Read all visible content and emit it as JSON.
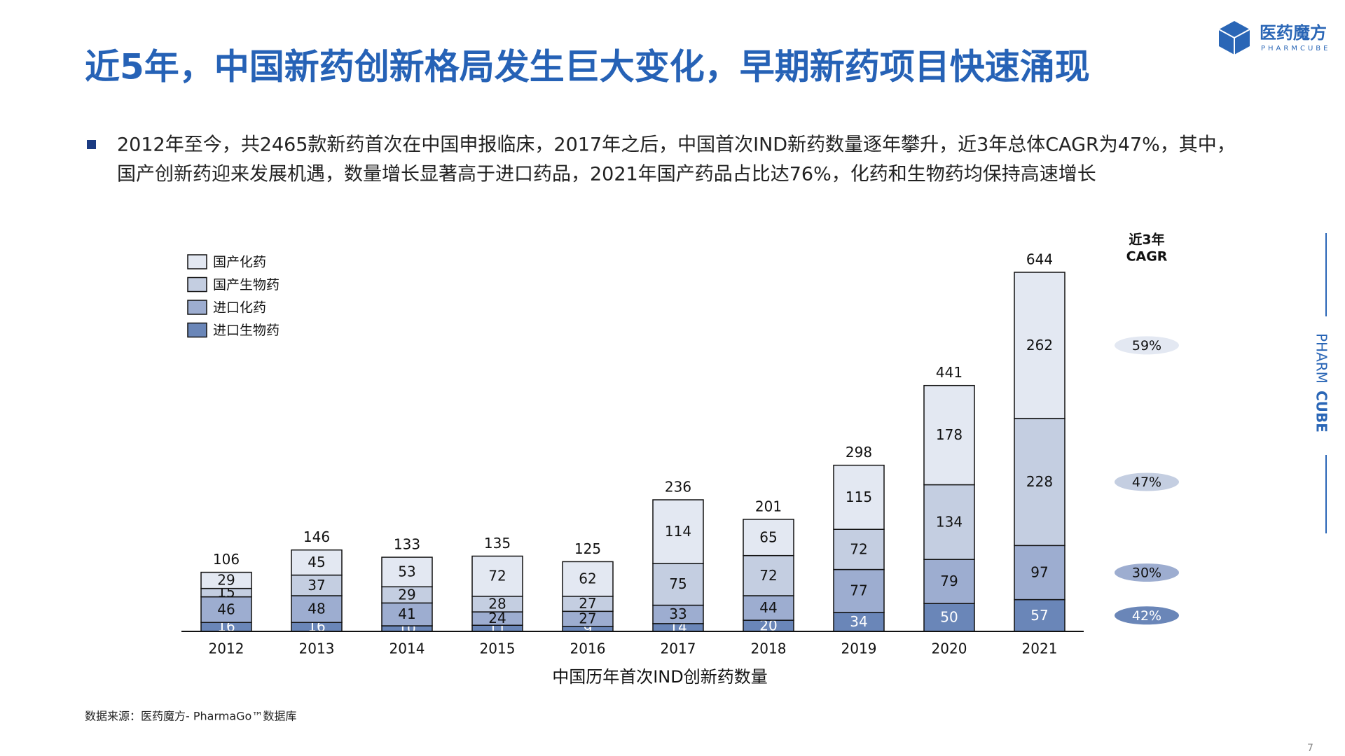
{
  "header": {
    "title": "近5年，中国新药创新格局发生巨大变化，早期新药项目快速涌现",
    "logo_cn": "医药魔方",
    "logo_en": "PHARMCUBE",
    "side_label_a": "PHARM",
    "side_label_b": "CUBE"
  },
  "bullet": [
    "2012年至今，共2465款新药首次在中国申报临床，2017年之后，中国首次IND新药数量逐年攀升，近3年总体CAGR为47%，其中，",
    "国产创新药迎来发展机遇，数量增长显著高于进口药品，2021年国产药品占比达76%，化药和生物药均保持高速增长"
  ],
  "chart_data": {
    "type": "stacked_bar",
    "xlabel": "中国历年首次IND创新药数量",
    "categories": [
      "2012",
      "2013",
      "2014",
      "2015",
      "2016",
      "2017",
      "2018",
      "2019",
      "2020",
      "2021"
    ],
    "series": [
      {
        "name": "国产化药",
        "color": "#e3e8f2",
        "values": [
          29,
          45,
          53,
          72,
          62,
          114,
          65,
          115,
          178,
          262
        ]
      },
      {
        "name": "国产生物药",
        "color": "#c4cee1",
        "values": [
          15,
          37,
          29,
          28,
          27,
          75,
          72,
          72,
          134,
          228
        ]
      },
      {
        "name": "进口化药",
        "color": "#9dadd0",
        "values": [
          46,
          48,
          41,
          24,
          27,
          33,
          44,
          77,
          79,
          97
        ]
      },
      {
        "name": "进口生物药",
        "color": "#6a86b8",
        "values": [
          16,
          16,
          10,
          11,
          9,
          14,
          20,
          34,
          50,
          57
        ]
      }
    ],
    "totals": [
      106,
      146,
      133,
      135,
      125,
      236,
      201,
      298,
      441,
      644
    ],
    "cagr": {
      "title": [
        "近3年",
        "CAGR"
      ],
      "values": [
        59,
        47,
        30,
        42
      ],
      "value_labels": [
        "59%",
        "47%",
        "30%",
        "42%"
      ]
    },
    "legend": "upper left"
  },
  "footer": {
    "source": "数据来源：医药魔方- PharmaGo™数据库",
    "page": "7"
  }
}
